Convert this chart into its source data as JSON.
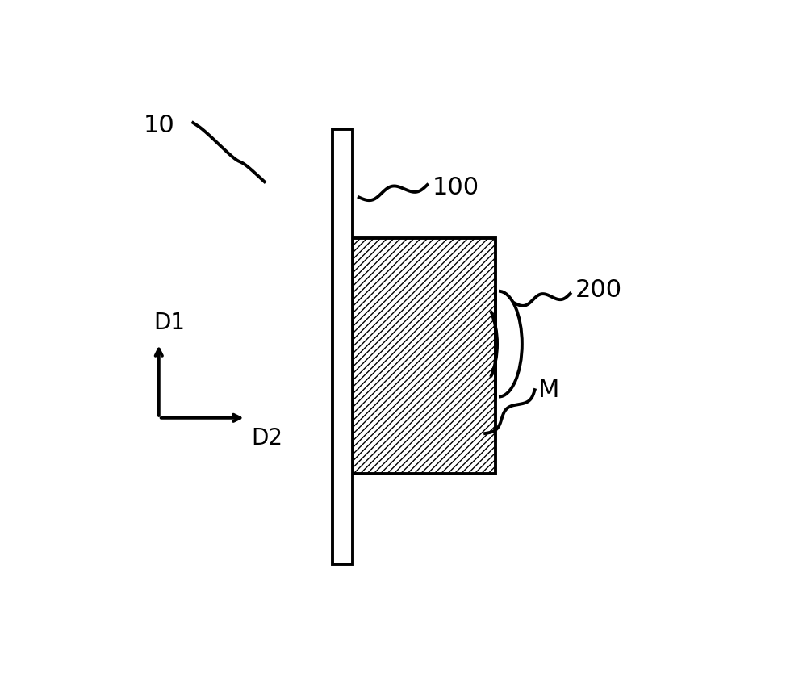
{
  "bg_color": "#ffffff",
  "line_color": "#000000",
  "label_10": "10",
  "label_100": "100",
  "label_200": "200",
  "label_M": "M",
  "label_D1": "D1",
  "label_D2": "D2",
  "font_size": 20
}
